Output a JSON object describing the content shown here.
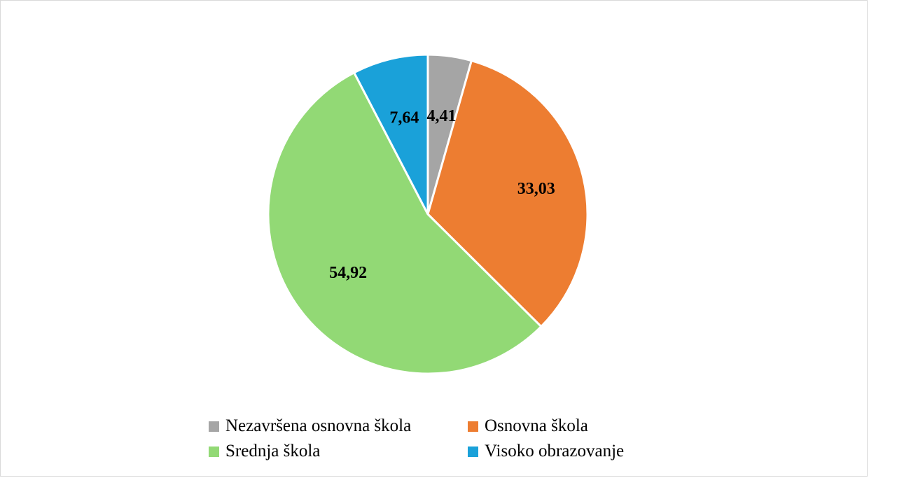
{
  "chart_data": {
    "type": "pie",
    "title": "",
    "legend_position": "bottom",
    "slices": [
      {
        "label": "Nezavršena osnovna škola",
        "value": 4.41,
        "display": "4,41",
        "color": "#a5a5a5"
      },
      {
        "label": "Osnovna škola",
        "value": 33.03,
        "display": "33,03",
        "color": "#ed7d31"
      },
      {
        "label": "Srednja škola",
        "value": 54.92,
        "display": "54,92",
        "color": "#92d975"
      },
      {
        "label": "Visoko obrazovanje",
        "value": 7.64,
        "display": "7,64",
        "color": "#1aa1d9"
      }
    ]
  }
}
